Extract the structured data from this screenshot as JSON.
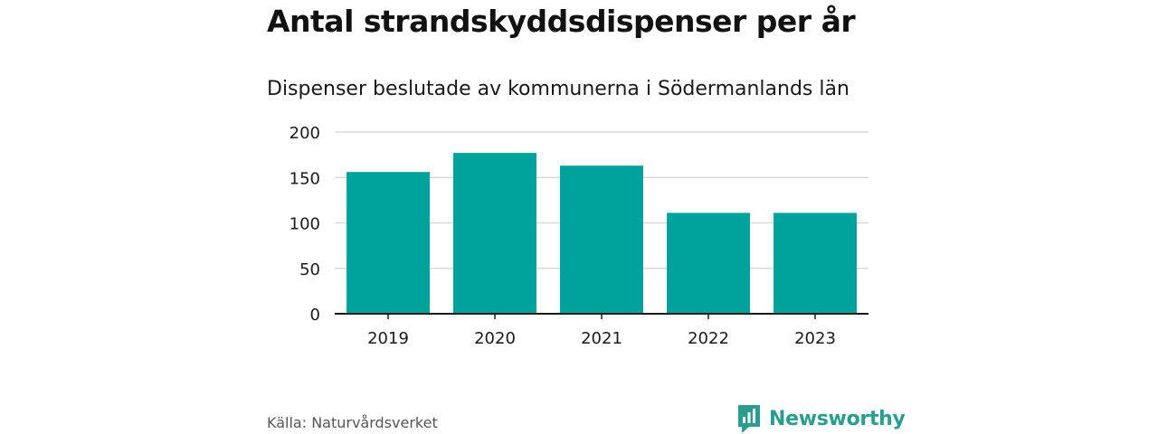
{
  "header": {
    "title": "Antal strandskyddsdispenser per år",
    "subtitle": "Dispenser beslutade av kommunerna i Södermanlands län"
  },
  "footer": {
    "source": "Källa: Naturvårdsverket",
    "brand_name": "Newsworthy",
    "brand_icon": "bar-chart-speech-bubble-icon"
  },
  "colors": {
    "bar": "#00a39b",
    "grid": "#d9d9d9",
    "axis": "#1a1a1a",
    "brand": "#2a9d8f"
  },
  "chart_data": {
    "type": "bar",
    "title": "Antal strandskyddsdispenser per år",
    "subtitle": "Dispenser beslutade av kommunerna i Södermanlands län",
    "categories": [
      "2019",
      "2020",
      "2021",
      "2022",
      "2023"
    ],
    "values": [
      156,
      177,
      163,
      111,
      111
    ],
    "xlabel": "",
    "ylabel": "",
    "ylim": [
      0,
      200
    ],
    "yticks": [
      0,
      50,
      100,
      150,
      200
    ],
    "grid": true,
    "legend": "none"
  }
}
